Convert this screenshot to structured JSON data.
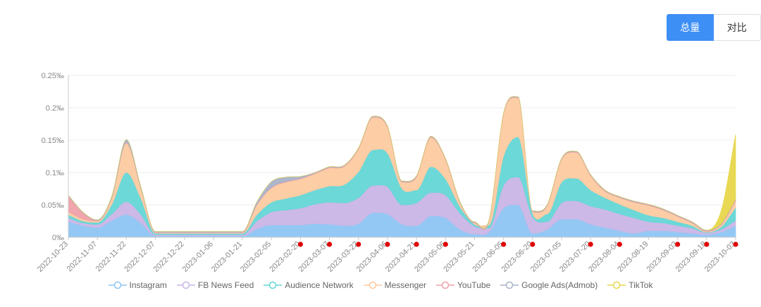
{
  "toggle": {
    "total_label": "总量",
    "compare_label": "对比"
  },
  "colors": {
    "axis": "#cccccc",
    "grid": "#eeeeee",
    "marker": "#e00000",
    "series": {
      "Instagram": "#8ec5f3",
      "FB News Feed": "#c9b5e6",
      "Audience Network": "#64d6d6",
      "Messenger": "#fdcaa0",
      "YouTube": "#f0a0a8",
      "Google Ads(Admob)": "#a8b2c8",
      "TikTok": "#e7d64a"
    }
  },
  "chart_data": {
    "type": "area",
    "stacked": true,
    "title": "",
    "xlabel": "",
    "ylabel": "",
    "ylim": [
      0,
      0.25
    ],
    "unit": "‰",
    "y_ticks": [
      "0‰",
      "0.05‰",
      "0.1‰",
      "0.15‰",
      "0.2‰",
      "0.25‰"
    ],
    "y_tick_values": [
      0,
      0.05,
      0.1,
      0.15,
      0.2,
      0.25
    ],
    "x_tick_labels": [
      "2022-10-23",
      "2022-11-07",
      "2022-11-22",
      "2022-12-07",
      "2022-12-22",
      "2023-01-06",
      "2023-01-21",
      "2023-02-05",
      "2023-02-20",
      "2023-03-07",
      "2023-03-22",
      "2023-04-06",
      "2023-04-21",
      "2023-05-06",
      "2023-05-21",
      "2023-06-05",
      "2023-06-20",
      "2023-07-05",
      "2023-07-20",
      "2023-08-04",
      "2023-08-19",
      "2023-09-03",
      "2023-09-18",
      "2023-10-03"
    ],
    "marker_ticks": [
      "2023-02-20",
      "2023-03-07",
      "2023-03-22",
      "2023-04-06",
      "2023-04-21",
      "2023-05-06",
      "2023-06-05",
      "2023-06-20",
      "2023-07-20",
      "2023-08-04",
      "2023-09-03",
      "2023-09-18",
      "2023-10-03"
    ],
    "x": [
      0,
      0.5,
      1,
      1.5,
      2,
      2.5,
      3,
      3.5,
      4,
      4.5,
      5,
      5.5,
      6,
      6.5,
      7,
      7.5,
      8,
      8.5,
      9,
      9.5,
      10,
      10.5,
      11,
      11.5,
      12,
      12.5,
      13,
      13.5,
      14,
      14.5,
      15,
      15.5,
      16,
      16.5,
      17,
      17.5,
      18,
      18.5,
      19,
      19.5,
      20,
      20.5,
      21,
      21.5,
      22,
      22.5,
      23
    ],
    "series": [
      {
        "name": "Instagram",
        "values": [
          0.024,
          0.018,
          0.015,
          0.026,
          0.035,
          0.022,
          0.002,
          0.002,
          0.002,
          0.002,
          0.002,
          0.002,
          0.002,
          0.013,
          0.019,
          0.019,
          0.019,
          0.021,
          0.02,
          0.018,
          0.021,
          0.038,
          0.036,
          0.02,
          0.018,
          0.033,
          0.03,
          0.012,
          0.005,
          0.008,
          0.045,
          0.05,
          0.006,
          0.012,
          0.028,
          0.028,
          0.02,
          0.015,
          0.01,
          0.006,
          0.01,
          0.01,
          0.008,
          0.006,
          0.004,
          0.008,
          0.018
        ]
      },
      {
        "name": "FB News Feed",
        "values": [
          0.006,
          0.004,
          0.005,
          0.01,
          0.02,
          0.013,
          0.002,
          0.002,
          0.002,
          0.002,
          0.002,
          0.002,
          0.002,
          0.012,
          0.02,
          0.023,
          0.026,
          0.03,
          0.034,
          0.035,
          0.04,
          0.042,
          0.042,
          0.03,
          0.035,
          0.036,
          0.035,
          0.025,
          0.012,
          0.006,
          0.035,
          0.043,
          0.025,
          0.012,
          0.025,
          0.028,
          0.028,
          0.028,
          0.026,
          0.024,
          0.014,
          0.012,
          0.01,
          0.008,
          0.003,
          0.004,
          0.008
        ]
      },
      {
        "name": "Audience Network",
        "values": [
          0.005,
          0.003,
          0.003,
          0.015,
          0.045,
          0.025,
          0.002,
          0.002,
          0.002,
          0.002,
          0.002,
          0.002,
          0.002,
          0.01,
          0.015,
          0.018,
          0.02,
          0.022,
          0.025,
          0.028,
          0.04,
          0.055,
          0.052,
          0.025,
          0.02,
          0.04,
          0.025,
          0.01,
          0.003,
          0.005,
          0.045,
          0.062,
          0.006,
          0.012,
          0.032,
          0.035,
          0.025,
          0.018,
          0.015,
          0.012,
          0.01,
          0.008,
          0.006,
          0.004,
          0.001,
          0.004,
          0.02
        ]
      },
      {
        "name": "Messenger",
        "values": [
          0.004,
          0.003,
          0.002,
          0.01,
          0.045,
          0.015,
          0.001,
          0.001,
          0.001,
          0.001,
          0.001,
          0.001,
          0.001,
          0.015,
          0.022,
          0.025,
          0.025,
          0.025,
          0.028,
          0.028,
          0.035,
          0.05,
          0.04,
          0.01,
          0.02,
          0.045,
          0.03,
          0.006,
          0.002,
          0.006,
          0.065,
          0.06,
          0.002,
          0.012,
          0.035,
          0.04,
          0.022,
          0.01,
          0.01,
          0.012,
          0.015,
          0.012,
          0.008,
          0.004,
          0.001,
          0.003,
          0.01
        ]
      },
      {
        "name": "YouTube",
        "values": [
          0.025,
          0.01,
          0.001,
          0.001,
          0.001,
          0.001,
          0.001,
          0.001,
          0.001,
          0.001,
          0.001,
          0.001,
          0.001,
          0.001,
          0.001,
          0.001,
          0.001,
          0.001,
          0.001,
          0.001,
          0.001,
          0.001,
          0.001,
          0.001,
          0.001,
          0.001,
          0.001,
          0.001,
          0.001,
          0.001,
          0.001,
          0.001,
          0.001,
          0.001,
          0.001,
          0.001,
          0.001,
          0.001,
          0.001,
          0.001,
          0.001,
          0.001,
          0.001,
          0.001,
          0.001,
          0.001,
          0.002
        ]
      },
      {
        "name": "Google Ads(Admob)",
        "values": [
          0.001,
          0.001,
          0.001,
          0.002,
          0.005,
          0.002,
          0.001,
          0.001,
          0.001,
          0.001,
          0.001,
          0.001,
          0.001,
          0.004,
          0.009,
          0.007,
          0.003,
          0.001,
          0.001,
          0.001,
          0.001,
          0.001,
          0.001,
          0.001,
          0.001,
          0.001,
          0.001,
          0.001,
          0.001,
          0.001,
          0.001,
          0.001,
          0.001,
          0.001,
          0.001,
          0.001,
          0.001,
          0.001,
          0.001,
          0.001,
          0.001,
          0.001,
          0.001,
          0.001,
          0.001,
          0.001,
          0.001
        ]
      },
      {
        "name": "TikTok",
        "values": [
          0,
          0,
          0,
          0,
          0,
          0,
          0,
          0,
          0,
          0,
          0,
          0,
          0,
          0,
          0,
          0,
          0,
          0,
          0,
          0,
          0,
          0,
          0,
          0,
          0,
          0,
          0,
          0,
          0,
          0,
          0,
          0,
          0,
          0,
          0,
          0,
          0,
          0,
          0,
          0,
          0,
          0,
          0,
          0,
          0,
          0.02,
          0.1
        ]
      }
    ],
    "legend": [
      "Instagram",
      "FB News Feed",
      "Audience Network",
      "Messenger",
      "YouTube",
      "Google Ads(Admob)",
      "TikTok"
    ],
    "legend_position": "bottom"
  }
}
